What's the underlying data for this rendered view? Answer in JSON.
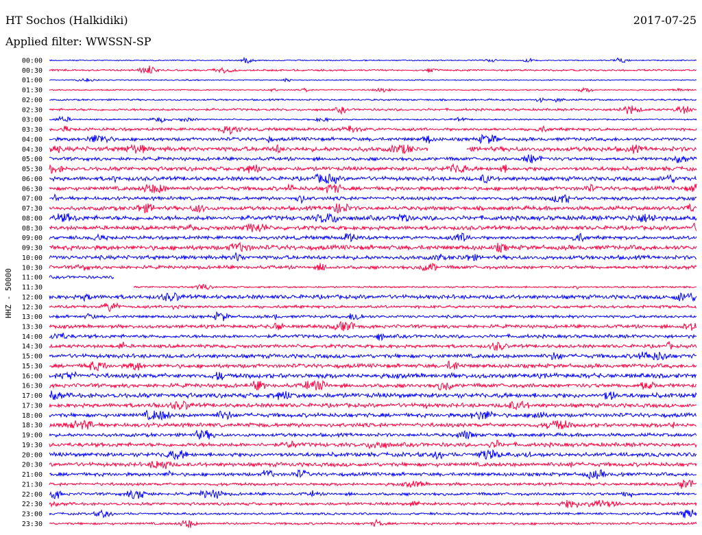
{
  "header": {
    "station": "HT Sochos (Halkidiki)",
    "date": "2017-07-25",
    "filter": "Applied filter: WWSSN-SP"
  },
  "chart_data": {
    "type": "line",
    "title": "HT Sochos (Halkidiki)",
    "subtitle": "Applied filter: WWSSN-SP",
    "ylabel": "HHZ - 50000",
    "xlabel": "",
    "grid": false,
    "colors": {
      "even_hour": "#0000ff",
      "half_hour": "#ff0040"
    },
    "rows": [
      {
        "label": "00:00",
        "amp": 1,
        "gap": null
      },
      {
        "label": "00:30",
        "amp": 1.5,
        "gap": null
      },
      {
        "label": "01:00",
        "amp": 0.8,
        "gap": null
      },
      {
        "label": "01:30",
        "amp": 1,
        "gap": null
      },
      {
        "label": "02:00",
        "amp": 1.5,
        "gap": null
      },
      {
        "label": "02:30",
        "amp": 2,
        "gap": null
      },
      {
        "label": "03:00",
        "amp": 1.2,
        "gap": null
      },
      {
        "label": "03:30",
        "amp": 2.5,
        "gap": null
      },
      {
        "label": "04:00",
        "amp": 3,
        "gap": null
      },
      {
        "label": "04:30",
        "amp": 4,
        "gap": [
          0.585,
          0.645
        ]
      },
      {
        "label": "05:00",
        "amp": 3,
        "gap": null
      },
      {
        "label": "05:30",
        "amp": 3.5,
        "gap": null
      },
      {
        "label": "06:00",
        "amp": 3.5,
        "gap": null
      },
      {
        "label": "06:30",
        "amp": 3.5,
        "gap": null
      },
      {
        "label": "07:00",
        "amp": 3,
        "gap": null
      },
      {
        "label": "07:30",
        "amp": 3.5,
        "gap": null
      },
      {
        "label": "08:00",
        "amp": 4,
        "gap": null
      },
      {
        "label": "08:30",
        "amp": 3.5,
        "gap": null
      },
      {
        "label": "09:00",
        "amp": 3,
        "gap": null
      },
      {
        "label": "09:30",
        "amp": 4,
        "gap": null
      },
      {
        "label": "10:00",
        "amp": 3.5,
        "gap": null
      },
      {
        "label": "10:30",
        "amp": 3,
        "gap": null
      },
      {
        "label": "11:00",
        "amp": 2.5,
        "gap": [
          0.1,
          1.0
        ]
      },
      {
        "label": "11:30",
        "amp": 1.5,
        "gap": [
          0.0,
          0.13
        ]
      },
      {
        "label": "12:00",
        "amp": 3.5,
        "gap": null
      },
      {
        "label": "12:30",
        "amp": 2.5,
        "gap": null
      },
      {
        "label": "13:00",
        "amp": 2.5,
        "gap": null
      },
      {
        "label": "13:30",
        "amp": 3,
        "gap": null
      },
      {
        "label": "14:00",
        "amp": 3,
        "gap": null
      },
      {
        "label": "14:30",
        "amp": 3,
        "gap": null
      },
      {
        "label": "15:00",
        "amp": 3.5,
        "gap": null
      },
      {
        "label": "15:30",
        "amp": 3.5,
        "gap": null
      },
      {
        "label": "16:00",
        "amp": 4,
        "gap": null
      },
      {
        "label": "16:30",
        "amp": 3.5,
        "gap": null
      },
      {
        "label": "17:00",
        "amp": 4,
        "gap": null
      },
      {
        "label": "17:30",
        "amp": 3.5,
        "gap": null
      },
      {
        "label": "18:00",
        "amp": 3.5,
        "gap": null
      },
      {
        "label": "18:30",
        "amp": 3.5,
        "gap": null
      },
      {
        "label": "19:00",
        "amp": 3,
        "gap": null
      },
      {
        "label": "19:30",
        "amp": 3.5,
        "gap": null
      },
      {
        "label": "20:00",
        "amp": 3.5,
        "gap": null
      },
      {
        "label": "20:30",
        "amp": 3.5,
        "gap": null
      },
      {
        "label": "21:00",
        "amp": 3,
        "gap": null
      },
      {
        "label": "21:30",
        "amp": 2.5,
        "gap": null
      },
      {
        "label": "22:00",
        "amp": 2.5,
        "gap": null
      },
      {
        "label": "22:30",
        "amp": 2.5,
        "gap": null
      },
      {
        "label": "23:00",
        "amp": 2,
        "gap": null
      },
      {
        "label": "23:30",
        "amp": 2,
        "gap": null
      }
    ]
  }
}
